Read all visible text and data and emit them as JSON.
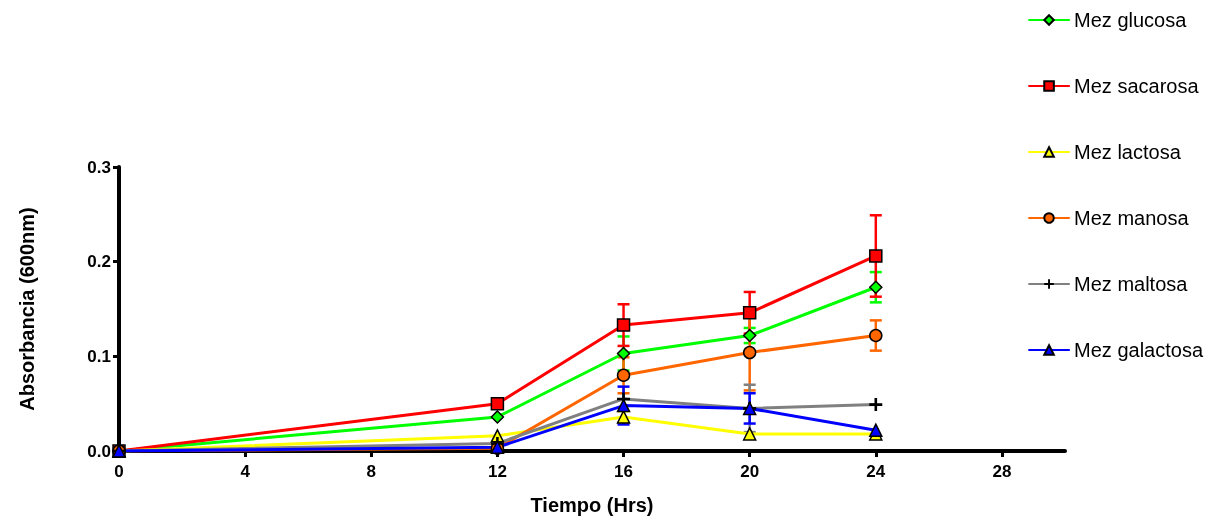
{
  "chart_data": {
    "type": "line",
    "xlabel": "Tiempo (Hrs)",
    "ylabel": "Absorbancia (600nm)",
    "x": [
      0,
      12,
      16,
      20,
      24
    ],
    "xlim": [
      0,
      30
    ],
    "xticks": [
      0,
      4,
      8,
      12,
      16,
      20,
      24,
      28
    ],
    "ylim": [
      0,
      0.3
    ],
    "yticks": [
      {
        "value": 0,
        "label": "0.0"
      },
      0.1,
      0.2,
      0.3
    ],
    "grid": false,
    "legend": "right",
    "line_style": "solid",
    "series": [
      {
        "name": "Mez glucosa",
        "color": "#00ff00",
        "marker": "diamond",
        "values": [
          0,
          0.036,
          0.103,
          0.122,
          0.173
        ],
        "errors": [
          null,
          null,
          0.018,
          0.008,
          0.016
        ]
      },
      {
        "name": "Mez sacarosa",
        "color": "#ff0000",
        "marker": "square",
        "values": [
          0,
          0.05,
          0.133,
          0.146,
          0.206
        ],
        "errors": [
          null,
          null,
          0.022,
          0.022,
          0.043
        ]
      },
      {
        "name": "Mez lactosa",
        "color": "#ffff00",
        "marker": "triangle",
        "values": [
          0,
          0.016,
          0.036,
          0.018,
          0.018
        ],
        "errors": [
          null,
          null,
          0.006,
          null,
          null
        ]
      },
      {
        "name": "Mez manosa",
        "color": "#ff6600",
        "marker": "circle",
        "values": [
          0,
          0.003,
          0.08,
          0.104,
          0.122
        ],
        "errors": [
          null,
          null,
          0.019,
          0.04,
          0.016
        ]
      },
      {
        "name": "Mez maltosa",
        "color": "#808080",
        "marker": "cross",
        "values": [
          0,
          0.008,
          0.055,
          0.045,
          0.049
        ],
        "errors": [
          null,
          null,
          null,
          0.025,
          null
        ]
      },
      {
        "name": "Mez galactosa",
        "color": "#0000ff",
        "marker": "triangle",
        "values": [
          0,
          0.004,
          0.048,
          0.045,
          0.022
        ],
        "errors": [
          null,
          null,
          0.02,
          0.016,
          null
        ]
      }
    ]
  }
}
